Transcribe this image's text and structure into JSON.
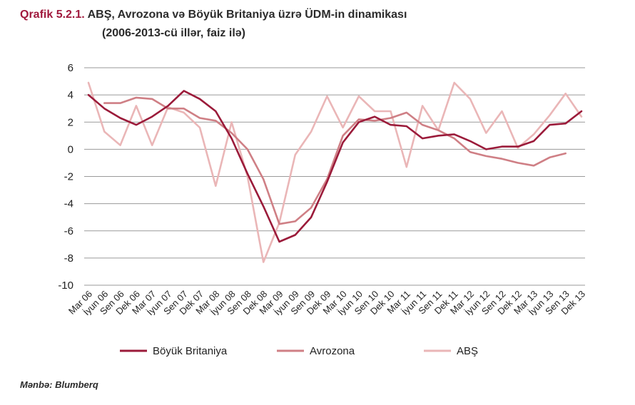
{
  "header": {
    "prefix": "Qrafik 5.2.1.",
    "title": "ABŞ, Avrozona və Böyük Britaniya üzrə ÜDM-in dinamikası",
    "subtitle": "(2006-2013-cü illər, faiz ilə)"
  },
  "source": "Mənbə: Blumberq",
  "chart_data": {
    "type": "line",
    "categories": [
      "Mar 06",
      "İyun 06",
      "Sen 06",
      "Dek 06",
      "Mar 07",
      "İyun 07",
      "Sen 07",
      "Dek 07",
      "Mar 08",
      "İyun 08",
      "Sen 08",
      "Dek 08",
      "Mar 09",
      "İyun 09",
      "Sen 09",
      "Dek 09",
      "Mar 10",
      "İyun 10",
      "Sen 10",
      "Dek 10",
      "Mar 11",
      "İyun 11",
      "Sen 11",
      "Dek 11",
      "Mar 12",
      "İyun 12",
      "Sen 12",
      "Dek 12",
      "Mar 13",
      "İyun 13",
      "Sen 13",
      "Dek 13"
    ],
    "ylim": [
      -10,
      6
    ],
    "yticks": [
      6,
      4,
      2,
      0,
      -2,
      -4,
      -6,
      -8,
      -10
    ],
    "grid": true,
    "legend_position": "bottom",
    "series": [
      {
        "name": "Böyük Britaniya",
        "color": "#9b1b3a",
        "width": 2.6,
        "values": [
          4.0,
          3.0,
          2.3,
          1.8,
          2.4,
          3.2,
          4.3,
          3.7,
          2.8,
          0.8,
          -1.8,
          -4.2,
          -6.8,
          -6.3,
          -5.0,
          -2.4,
          0.5,
          2.0,
          2.4,
          1.8,
          1.7,
          0.8,
          1.0,
          1.1,
          0.6,
          0.0,
          0.2,
          0.2,
          0.6,
          1.8,
          1.9,
          2.8
        ]
      },
      {
        "name": "Avrozona",
        "color": "#cf7f85",
        "width": 2.6,
        "values": [
          null,
          3.4,
          3.4,
          3.8,
          3.7,
          3.0,
          3.0,
          2.3,
          2.1,
          1.2,
          0.0,
          -2.2,
          -5.5,
          -5.3,
          -4.3,
          -2.2,
          1.0,
          2.2,
          2.1,
          2.3,
          2.7,
          1.8,
          1.4,
          0.8,
          -0.2,
          -0.5,
          -0.7,
          -1.0,
          -1.2,
          -0.6,
          -0.3,
          null
        ]
      },
      {
        "name": "ABŞ",
        "color": "#eab6b7",
        "width": 2.6,
        "values": [
          4.9,
          1.3,
          0.3,
          3.2,
          0.3,
          3.1,
          2.7,
          1.6,
          -2.7,
          2.0,
          -2.0,
          -8.3,
          -5.4,
          -0.4,
          1.3,
          3.9,
          1.6,
          3.9,
          2.8,
          2.8,
          -1.3,
          3.2,
          1.4,
          4.9,
          3.7,
          1.2,
          2.8,
          0.1,
          1.1,
          2.5,
          4.1,
          2.4
        ]
      }
    ]
  }
}
